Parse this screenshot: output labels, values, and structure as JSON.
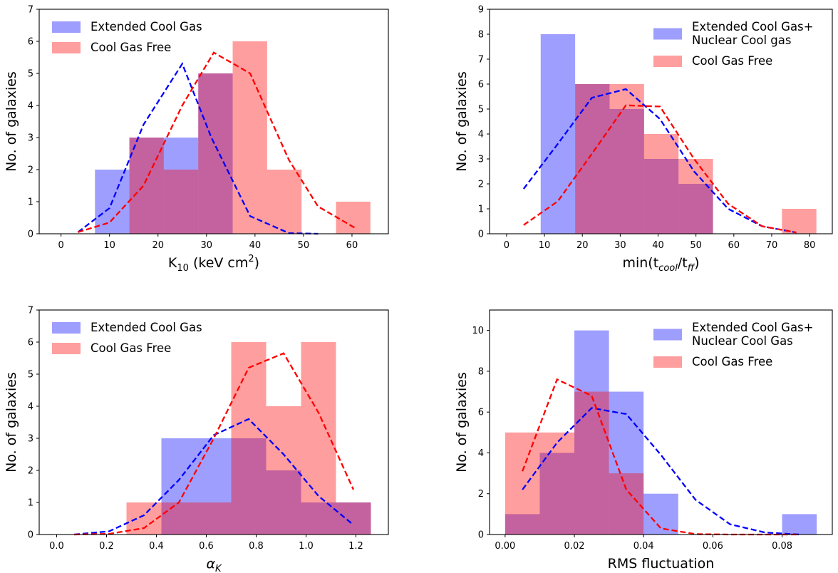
{
  "colors": {
    "extended": "#0000ff",
    "free": "#ff0000",
    "bar_opacity": 0.38
  },
  "chart_data": [
    {
      "type": "bar",
      "xlabel": "K",
      "xlabel_sub": "10",
      "xlabel_post": " (keV cm",
      "xlabel_sup": "2",
      "xlabel_end": ")",
      "ylabel": "No. of galaxies",
      "xlim": [
        -4.5,
        67.5
      ],
      "ylim": [
        0,
        7
      ],
      "xticks": [
        0,
        10,
        20,
        30,
        40,
        50,
        60
      ],
      "xtick_labels": [
        "0",
        "10",
        "20",
        "30",
        "40",
        "50",
        "60"
      ],
      "yticks": [
        0,
        1,
        2,
        3,
        4,
        5,
        6,
        7
      ],
      "ytick_labels": [
        "0",
        "1",
        "2",
        "3",
        "4",
        "5",
        "6",
        "7"
      ],
      "legend": [
        "Extended Cool Gas",
        "Cool Gas Free"
      ],
      "legend_position": "top-left",
      "series": [
        {
          "name": "Extended Cool Gas",
          "color": "#0000ff",
          "bin_edges": [
            7,
            14.1,
            21.2,
            28.3,
            35.4
          ],
          "counts": [
            2,
            3,
            3,
            5
          ],
          "curve_x": [
            3.5,
            10,
            17,
            25,
            31,
            39,
            47,
            53
          ],
          "curve_y": [
            0.05,
            0.8,
            3.4,
            5.3,
            3.0,
            0.55,
            0.02,
            0.0
          ]
        },
        {
          "name": "Cool Gas Free",
          "color": "#ff0000",
          "bin_edges": [
            14.1,
            21.2,
            28.3,
            35.4,
            42.5,
            49.6,
            56.7,
            63.8
          ],
          "counts": [
            3,
            2,
            5,
            6,
            2,
            0,
            1
          ],
          "curve_x": [
            3.5,
            10,
            17,
            25,
            31.5,
            39,
            47,
            53,
            61
          ],
          "curve_y": [
            0.05,
            0.35,
            1.5,
            4.0,
            5.65,
            5.0,
            2.3,
            0.85,
            0.15
          ]
        }
      ]
    },
    {
      "type": "bar",
      "xlabel": "min(t",
      "xlabel_sub": "cool",
      "xlabel_post": "/t",
      "xlabel_sub2": "ff",
      "xlabel_end": ")",
      "ylabel": "No. of galaxies",
      "xlim": [
        -4.5,
        86
      ],
      "ylim": [
        0,
        9
      ],
      "xticks": [
        0,
        10,
        20,
        30,
        40,
        50,
        60,
        70,
        80
      ],
      "xtick_labels": [
        "0",
        "10",
        "20",
        "30",
        "40",
        "50",
        "60",
        "70",
        "80"
      ],
      "yticks": [
        0,
        1,
        2,
        3,
        4,
        5,
        6,
        7,
        8,
        9
      ],
      "ytick_labels": [
        "0",
        "1",
        "2",
        "3",
        "4",
        "5",
        "6",
        "7",
        "8",
        "9"
      ],
      "legend": [
        "Extended Cool Gas+\nNuclear Cool gas",
        "Cool Gas Free"
      ],
      "legend_position": "top-right",
      "series": [
        {
          "name": "Extended Cool Gas+\nNuclear Cool gas",
          "color": "#0000ff",
          "bin_edges": [
            9,
            18.1,
            27.2,
            36.3,
            45.4,
            54.5
          ],
          "counts": [
            8,
            6,
            5,
            3,
            2
          ],
          "curve_x": [
            4.5,
            13.5,
            22.5,
            31.5,
            40.5,
            49.5,
            58.5,
            67.5,
            76.5
          ],
          "curve_y": [
            1.8,
            3.6,
            5.45,
            5.8,
            4.6,
            2.5,
            1.0,
            0.3,
            0.05
          ]
        },
        {
          "name": "Cool Gas Free",
          "color": "#ff0000",
          "bin_edges": [
            18.1,
            27.2,
            36.3,
            45.4,
            54.5,
            63.6,
            72.7,
            81.8
          ],
          "counts": [
            6,
            6,
            4,
            3,
            0,
            0,
            1
          ],
          "curve_x": [
            4.5,
            13.5,
            22.5,
            31.5,
            40.5,
            49.5,
            58.5,
            67.5,
            76.5
          ],
          "curve_y": [
            0.35,
            1.3,
            3.2,
            5.15,
            5.1,
            3.0,
            1.2,
            0.3,
            0.05
          ]
        }
      ]
    },
    {
      "type": "bar",
      "xlabel": "α",
      "xlabel_sub": "K",
      "xlabel_italic": true,
      "ylabel": "No. of galaxies",
      "xlim": [
        -0.07,
        1.33
      ],
      "ylim": [
        0,
        7
      ],
      "xticks": [
        0.0,
        0.2,
        0.4,
        0.6,
        0.8,
        1.0,
        1.2
      ],
      "xtick_labels": [
        "0.0",
        "0.2",
        "0.4",
        "0.6",
        "0.8",
        "1.0",
        "1.2"
      ],
      "yticks": [
        0,
        1,
        2,
        3,
        4,
        5,
        6,
        7
      ],
      "ytick_labels": [
        "0",
        "1",
        "2",
        "3",
        "4",
        "5",
        "6",
        "7"
      ],
      "legend": [
        "Extended Cool Gas",
        "Cool Gas Free"
      ],
      "legend_position": "top-left",
      "series": [
        {
          "name": "Extended Cool Gas",
          "color": "#0000ff",
          "bin_edges": [
            0.42,
            0.56,
            0.7,
            0.84,
            0.98,
            1.12,
            1.26
          ],
          "counts": [
            3,
            3,
            3,
            2,
            1,
            1
          ],
          "curve_x": [
            0.07,
            0.21,
            0.35,
            0.49,
            0.63,
            0.77,
            0.91,
            1.05,
            1.19
          ],
          "curve_y": [
            0.0,
            0.1,
            0.6,
            1.7,
            3.1,
            3.6,
            2.5,
            1.2,
            0.3
          ]
        },
        {
          "name": "Cool Gas Free",
          "color": "#ff0000",
          "bin_edges": [
            0.28,
            0.42,
            0.56,
            0.7,
            0.84,
            0.98,
            1.12,
            1.26
          ],
          "counts": [
            1,
            1,
            1,
            6,
            4,
            6,
            1
          ],
          "curve_x": [
            0.07,
            0.21,
            0.35,
            0.49,
            0.63,
            0.77,
            0.91,
            1.05,
            1.19
          ],
          "curve_y": [
            0.0,
            0.02,
            0.2,
            1.0,
            3.0,
            5.2,
            5.65,
            3.8,
            1.4
          ]
        }
      ]
    },
    {
      "type": "bar",
      "xlabel": "RMS fluctuation",
      "ylabel": "No. of galaxies",
      "xlim": [
        -0.0045,
        0.0945
      ],
      "ylim": [
        0,
        11
      ],
      "xticks": [
        0.0,
        0.02,
        0.04,
        0.06,
        0.08
      ],
      "xtick_labels": [
        "0.00",
        "0.02",
        "0.04",
        "0.06",
        "0.08"
      ],
      "yticks": [
        0,
        2,
        4,
        6,
        8,
        10
      ],
      "ytick_labels": [
        "0",
        "2",
        "4",
        "6",
        "8",
        "10"
      ],
      "legend": [
        "Extended Cool Gas+\n Nuclear Cool Gas",
        "Cool Gas Free"
      ],
      "legend_position": "top-right",
      "series": [
        {
          "name": "Extended Cool Gas+\n Nuclear Cool Gas",
          "color": "#0000ff",
          "bin_edges": [
            0.0,
            0.01,
            0.02,
            0.03,
            0.04,
            0.05,
            0.06,
            0.07,
            0.08,
            0.09
          ],
          "counts": [
            1,
            4,
            10,
            7,
            2,
            0,
            0,
            0,
            1
          ],
          "curve_x": [
            0.005,
            0.015,
            0.025,
            0.035,
            0.045,
            0.055,
            0.065,
            0.075,
            0.085
          ],
          "curve_y": [
            2.2,
            4.5,
            6.2,
            5.9,
            3.9,
            1.7,
            0.5,
            0.1,
            0.0
          ]
        },
        {
          "name": "Cool Gas Free",
          "color": "#ff0000",
          "bin_edges": [
            0.0,
            0.01,
            0.02,
            0.03,
            0.04
          ],
          "counts": [
            5,
            5,
            7,
            3
          ],
          "curve_x": [
            0.005,
            0.015,
            0.025,
            0.035,
            0.045,
            0.055,
            0.065,
            0.075,
            0.085
          ],
          "curve_y": [
            3.1,
            7.6,
            6.8,
            2.2,
            0.3,
            0.02,
            0.0,
            0.0,
            0.0
          ]
        }
      ]
    }
  ]
}
